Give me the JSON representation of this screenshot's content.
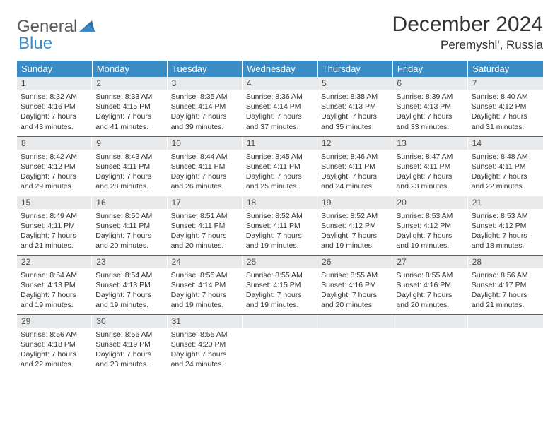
{
  "logo": {
    "text1": "General",
    "text2": "Blue"
  },
  "header": {
    "title": "December 2024",
    "location": "Peremyshl', Russia"
  },
  "colors": {
    "header_bg": "#3b8bc4",
    "header_text": "#ffffff",
    "daynum_bg": "#e9eaec",
    "border": "#2f6fa3",
    "logo_gray": "#5a5a5a",
    "logo_blue": "#3b8bc4"
  },
  "weekdays": [
    "Sunday",
    "Monday",
    "Tuesday",
    "Wednesday",
    "Thursday",
    "Friday",
    "Saturday"
  ],
  "weeks": [
    [
      {
        "n": "1",
        "sr": "8:32 AM",
        "ss": "4:16 PM",
        "dl": "7 hours and 43 minutes."
      },
      {
        "n": "2",
        "sr": "8:33 AM",
        "ss": "4:15 PM",
        "dl": "7 hours and 41 minutes."
      },
      {
        "n": "3",
        "sr": "8:35 AM",
        "ss": "4:14 PM",
        "dl": "7 hours and 39 minutes."
      },
      {
        "n": "4",
        "sr": "8:36 AM",
        "ss": "4:14 PM",
        "dl": "7 hours and 37 minutes."
      },
      {
        "n": "5",
        "sr": "8:38 AM",
        "ss": "4:13 PM",
        "dl": "7 hours and 35 minutes."
      },
      {
        "n": "6",
        "sr": "8:39 AM",
        "ss": "4:13 PM",
        "dl": "7 hours and 33 minutes."
      },
      {
        "n": "7",
        "sr": "8:40 AM",
        "ss": "4:12 PM",
        "dl": "7 hours and 31 minutes."
      }
    ],
    [
      {
        "n": "8",
        "sr": "8:42 AM",
        "ss": "4:12 PM",
        "dl": "7 hours and 29 minutes."
      },
      {
        "n": "9",
        "sr": "8:43 AM",
        "ss": "4:11 PM",
        "dl": "7 hours and 28 minutes."
      },
      {
        "n": "10",
        "sr": "8:44 AM",
        "ss": "4:11 PM",
        "dl": "7 hours and 26 minutes."
      },
      {
        "n": "11",
        "sr": "8:45 AM",
        "ss": "4:11 PM",
        "dl": "7 hours and 25 minutes."
      },
      {
        "n": "12",
        "sr": "8:46 AM",
        "ss": "4:11 PM",
        "dl": "7 hours and 24 minutes."
      },
      {
        "n": "13",
        "sr": "8:47 AM",
        "ss": "4:11 PM",
        "dl": "7 hours and 23 minutes."
      },
      {
        "n": "14",
        "sr": "8:48 AM",
        "ss": "4:11 PM",
        "dl": "7 hours and 22 minutes."
      }
    ],
    [
      {
        "n": "15",
        "sr": "8:49 AM",
        "ss": "4:11 PM",
        "dl": "7 hours and 21 minutes."
      },
      {
        "n": "16",
        "sr": "8:50 AM",
        "ss": "4:11 PM",
        "dl": "7 hours and 20 minutes."
      },
      {
        "n": "17",
        "sr": "8:51 AM",
        "ss": "4:11 PM",
        "dl": "7 hours and 20 minutes."
      },
      {
        "n": "18",
        "sr": "8:52 AM",
        "ss": "4:11 PM",
        "dl": "7 hours and 19 minutes."
      },
      {
        "n": "19",
        "sr": "8:52 AM",
        "ss": "4:12 PM",
        "dl": "7 hours and 19 minutes."
      },
      {
        "n": "20",
        "sr": "8:53 AM",
        "ss": "4:12 PM",
        "dl": "7 hours and 19 minutes."
      },
      {
        "n": "21",
        "sr": "8:53 AM",
        "ss": "4:12 PM",
        "dl": "7 hours and 18 minutes."
      }
    ],
    [
      {
        "n": "22",
        "sr": "8:54 AM",
        "ss": "4:13 PM",
        "dl": "7 hours and 19 minutes."
      },
      {
        "n": "23",
        "sr": "8:54 AM",
        "ss": "4:13 PM",
        "dl": "7 hours and 19 minutes."
      },
      {
        "n": "24",
        "sr": "8:55 AM",
        "ss": "4:14 PM",
        "dl": "7 hours and 19 minutes."
      },
      {
        "n": "25",
        "sr": "8:55 AM",
        "ss": "4:15 PM",
        "dl": "7 hours and 19 minutes."
      },
      {
        "n": "26",
        "sr": "8:55 AM",
        "ss": "4:16 PM",
        "dl": "7 hours and 20 minutes."
      },
      {
        "n": "27",
        "sr": "8:55 AM",
        "ss": "4:16 PM",
        "dl": "7 hours and 20 minutes."
      },
      {
        "n": "28",
        "sr": "8:56 AM",
        "ss": "4:17 PM",
        "dl": "7 hours and 21 minutes."
      }
    ],
    [
      {
        "n": "29",
        "sr": "8:56 AM",
        "ss": "4:18 PM",
        "dl": "7 hours and 22 minutes."
      },
      {
        "n": "30",
        "sr": "8:56 AM",
        "ss": "4:19 PM",
        "dl": "7 hours and 23 minutes."
      },
      {
        "n": "31",
        "sr": "8:55 AM",
        "ss": "4:20 PM",
        "dl": "7 hours and 24 minutes."
      },
      null,
      null,
      null,
      null
    ]
  ],
  "labels": {
    "sunrise": "Sunrise: ",
    "sunset": "Sunset: ",
    "daylight": "Daylight: "
  }
}
